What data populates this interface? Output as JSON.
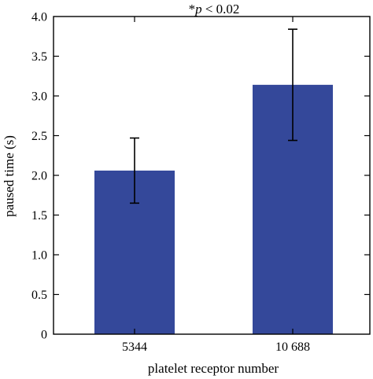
{
  "chart_data": {
    "type": "bar",
    "annotation": {
      "star": "*",
      "italic": "p",
      "rest": " < 0.02"
    },
    "xlabel": "platelet receptor number",
    "ylabel": "paused time (s)",
    "categories": [
      "5344",
      "10 688"
    ],
    "values": [
      2.06,
      3.14
    ],
    "error": [
      {
        "low": 1.65,
        "high": 2.47
      },
      {
        "low": 2.44,
        "high": 3.84
      }
    ],
    "ylim": [
      0,
      4.0
    ],
    "yticks": [
      "0",
      "0.5",
      "1.0",
      "1.5",
      "2.0",
      "2.5",
      "3.0",
      "3.5",
      "4.0"
    ],
    "ytick_values": [
      0,
      0.5,
      1.0,
      1.5,
      2.0,
      2.5,
      3.0,
      3.5,
      4.0
    ],
    "bar_color": "#34489a",
    "grid": false,
    "legend": "none"
  }
}
